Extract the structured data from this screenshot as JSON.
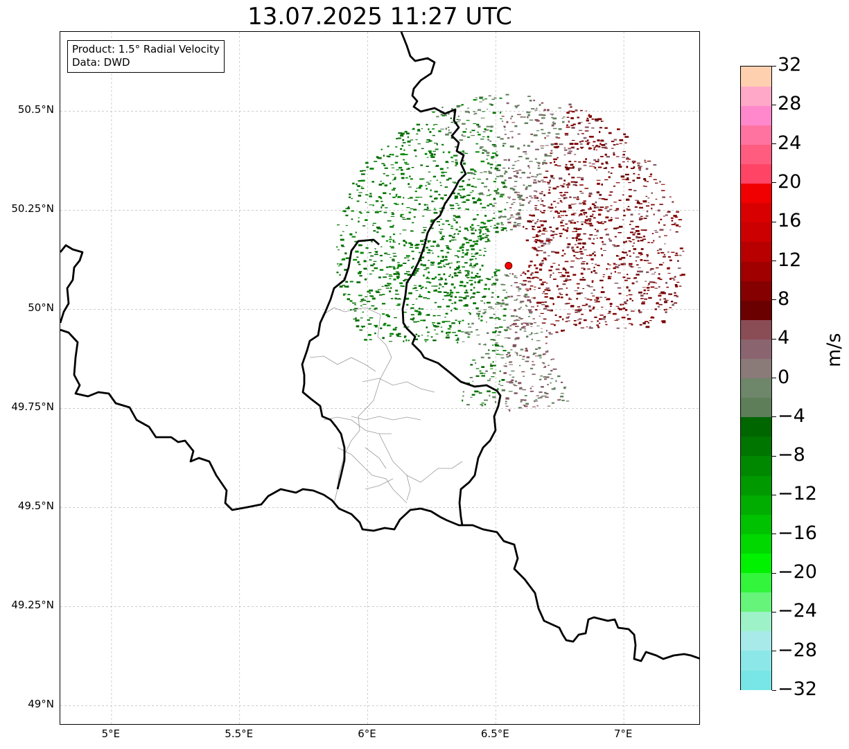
{
  "title": "13.07.2025 11:27 UTC",
  "info_box": {
    "product": "Product: 1.5° Radial Velocity",
    "data": "Data: DWD"
  },
  "map": {
    "lon_range": [
      4.8,
      7.3
    ],
    "lat_range": [
      48.95,
      50.7
    ],
    "x_ticks": [
      {
        "value": 5.0,
        "label": "5°E"
      },
      {
        "value": 5.5,
        "label": "5.5°E"
      },
      {
        "value": 6.0,
        "label": "6°E"
      },
      {
        "value": 6.5,
        "label": "6.5°E"
      },
      {
        "value": 7.0,
        "label": "7°E"
      }
    ],
    "y_ticks": [
      {
        "value": 50.5,
        "label": "50.5°N"
      },
      {
        "value": 50.25,
        "label": "50.25°N"
      },
      {
        "value": 50.0,
        "label": "50°N"
      },
      {
        "value": 49.75,
        "label": "49.75°N"
      },
      {
        "value": 49.5,
        "label": "49.5°N"
      },
      {
        "value": 49.25,
        "label": "49.25°N"
      },
      {
        "value": 49.0,
        "label": "49°N"
      }
    ],
    "gridlines": true,
    "radar_site": {
      "lon": 6.55,
      "lat": 50.11,
      "color": "#ff0000"
    },
    "border_color": "#000000",
    "admin_border_color": "#999999"
  },
  "colorbar": {
    "unit": "m/s",
    "min": -32,
    "max": 32,
    "labels": [
      {
        "value": 32,
        "text": "32"
      },
      {
        "value": 28,
        "text": "28"
      },
      {
        "value": 24,
        "text": "24"
      },
      {
        "value": 20,
        "text": "20"
      },
      {
        "value": 16,
        "text": "16"
      },
      {
        "value": 12,
        "text": "12"
      },
      {
        "value": 8,
        "text": "8"
      },
      {
        "value": 4,
        "text": "4"
      },
      {
        "value": 0,
        "text": "0"
      },
      {
        "value": -4,
        "text": "−4"
      },
      {
        "value": -8,
        "text": "−8"
      },
      {
        "value": -12,
        "text": "−12"
      },
      {
        "value": -16,
        "text": "−16"
      },
      {
        "value": -20,
        "text": "−20"
      },
      {
        "value": -24,
        "text": "−24"
      },
      {
        "value": -28,
        "text": "−28"
      },
      {
        "value": -32,
        "text": "−32"
      }
    ],
    "colors": [
      "#78e6e6",
      "#8ce8e8",
      "#a8eaea",
      "#9ef2c8",
      "#66f57a",
      "#32f53c",
      "#00f200",
      "#00d800",
      "#00c200",
      "#00ad00",
      "#009a00",
      "#008800",
      "#007500",
      "#006600",
      "#5e7e5a",
      "#6e8669",
      "#8a7a78",
      "#8a6570",
      "#8a4c55",
      "#6b0000",
      "#850000",
      "#a00000",
      "#b80000",
      "#cc0000",
      "#d80000",
      "#f00000",
      "#ff4466",
      "#ff5c80",
      "#ff73a0",
      "#ff88cc",
      "#ffa8c8",
      "#ffd0b0"
    ]
  }
}
